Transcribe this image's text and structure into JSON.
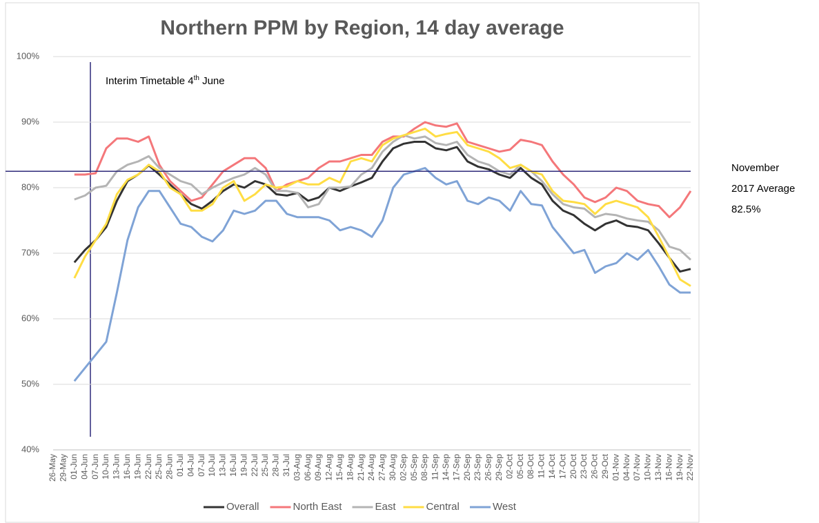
{
  "chart_data": {
    "type": "line",
    "title": "Northern PPM by Region, 14 day average",
    "categories": [
      "26-May",
      "29-May",
      "01-Jun",
      "04-Jun",
      "07-Jun",
      "10-Jun",
      "13-Jun",
      "16-Jun",
      "19-Jun",
      "22-Jun",
      "25-Jun",
      "28-Jun",
      "01-Jul",
      "04-Jul",
      "07-Jul",
      "10-Jul",
      "13-Jul",
      "16-Jul",
      "19-Jul",
      "22-Jul",
      "25-Jul",
      "28-Jul",
      "31-Jul",
      "03-Aug",
      "06-Aug",
      "09-Aug",
      "12-Aug",
      "15-Aug",
      "18-Aug",
      "21-Aug",
      "24-Aug",
      "27-Aug",
      "30-Aug",
      "02-Sep",
      "05-Sep",
      "08-Sep",
      "11-Sep",
      "14-Sep",
      "17-Sep",
      "20-Sep",
      "23-Sep",
      "26-Sep",
      "29-Sep",
      "02-Oct",
      "05-Oct",
      "08-Oct",
      "11-Oct",
      "14-Oct",
      "17-Oct",
      "20-Oct",
      "23-Oct",
      "26-Oct",
      "29-Oct",
      "01-Nov",
      "04-Nov",
      "07-Nov",
      "10-Nov",
      "13-Nov",
      "16-Nov",
      "19-Nov",
      "22-Nov"
    ],
    "series": [
      {
        "name": "Overall",
        "color": "#333333",
        "values": [
          null,
          null,
          68.6,
          70.5,
          72,
          74,
          78,
          81,
          82,
          83.4,
          82,
          80.5,
          79,
          77.5,
          76.8,
          78,
          79.5,
          80.5,
          80,
          81,
          80.5,
          79,
          78.8,
          79.2,
          78,
          78.5,
          80,
          79.5,
          80.2,
          80.8,
          81.5,
          84,
          86,
          86.7,
          87,
          87,
          86,
          85.7,
          86.2,
          84,
          83.2,
          82.8,
          82,
          81.5,
          83,
          81.5,
          80.5,
          78,
          76.5,
          75.8,
          74.5,
          73.5,
          74.5,
          75,
          74.2,
          74,
          73.5,
          71.5,
          69.3,
          67.2,
          67.6
        ]
      },
      {
        "name": "North East",
        "color": "#f4777a",
        "values": [
          null,
          null,
          82,
          82,
          82.2,
          86,
          87.5,
          87.5,
          87,
          87.8,
          83.5,
          81,
          79.5,
          78,
          78.5,
          80.5,
          82.5,
          83.5,
          84.5,
          84.5,
          83,
          79.5,
          80.5,
          81,
          81.5,
          83,
          84,
          84,
          84.5,
          85,
          85,
          87,
          87.8,
          87.8,
          89,
          90,
          89.5,
          89.3,
          89.8,
          87,
          86.5,
          86,
          85.5,
          85.8,
          87.3,
          87,
          86.5,
          84,
          82,
          80.5,
          78.5,
          77.8,
          78.5,
          80,
          79.5,
          78,
          77.5,
          77.2,
          75.5,
          77,
          79.5
        ]
      },
      {
        "name": "East",
        "color": "#b4b4b4",
        "values": [
          null,
          null,
          78.2,
          78.8,
          80,
          80.3,
          82.5,
          83.5,
          84,
          84.8,
          83,
          82,
          81,
          80.5,
          79,
          80,
          80.8,
          81.5,
          82,
          83,
          82,
          79.5,
          79.5,
          79.2,
          77,
          77.5,
          80,
          80,
          80.2,
          82,
          83,
          85.5,
          87,
          88,
          87.5,
          87.8,
          86.8,
          86.5,
          87,
          85,
          84,
          83.5,
          82.5,
          82,
          83.5,
          82.5,
          81,
          79,
          77.5,
          77,
          76.8,
          75.5,
          76,
          75.8,
          75.3,
          75,
          74.8,
          73.5,
          71,
          70.5,
          69
        ]
      },
      {
        "name": "Central",
        "color": "#ffdd44",
        "values": [
          null,
          null,
          66.2,
          69.5,
          72,
          74.5,
          79,
          81.2,
          82,
          83.5,
          82.5,
          80,
          79,
          76.5,
          76.5,
          77.5,
          80,
          81,
          78,
          79,
          80.5,
          80,
          80.2,
          81,
          80.5,
          80.5,
          81.5,
          80.8,
          84,
          84.5,
          84,
          86.5,
          87.5,
          88,
          88.5,
          89,
          87.8,
          88.2,
          88.5,
          86.5,
          86,
          85.5,
          84.5,
          83,
          83.5,
          82.5,
          82,
          79.5,
          78,
          77.8,
          77.5,
          76,
          77.5,
          78,
          77.5,
          77,
          75.5,
          72.5,
          69.3,
          66,
          65
        ]
      },
      {
        "name": "West",
        "color": "#7fa3d6",
        "values": [
          null,
          null,
          50.5,
          52.5,
          54.5,
          56.5,
          64,
          72,
          77,
          79.5,
          79.5,
          77,
          74.5,
          74,
          72.5,
          71.8,
          73.5,
          76.5,
          76,
          76.5,
          78,
          78,
          76,
          75.5,
          75.5,
          75.5,
          75,
          73.5,
          74,
          73.5,
          72.5,
          75,
          80,
          82,
          82.5,
          83,
          81.5,
          80.5,
          81,
          78,
          77.5,
          78.5,
          78,
          76.5,
          79.5,
          77.5,
          77.3,
          74,
          72,
          70,
          70.5,
          67,
          68,
          68.5,
          70,
          69,
          70.5,
          68,
          65.2,
          64,
          64
        ]
      }
    ],
    "ylim": [
      40,
      100
    ],
    "yticks": [
      {
        "value": 40,
        "label": "40%"
      },
      {
        "value": 50,
        "label": "50%"
      },
      {
        "value": 60,
        "label": "60%"
      },
      {
        "value": 70,
        "label": "70%"
      },
      {
        "value": 80,
        "label": "80%"
      },
      {
        "value": 90,
        "label": "90%"
      },
      {
        "value": 100,
        "label": "100%"
      }
    ],
    "grid": true,
    "legend": "bottom",
    "event_annotation": {
      "text": "Interim Timetable 4",
      "superscript": "th",
      "text_after": " June"
    },
    "reference_line": {
      "value": 82.5,
      "color": "#2e2a7a",
      "label": [
        "November",
        "2017 Average",
        "82.5%"
      ]
    }
  }
}
